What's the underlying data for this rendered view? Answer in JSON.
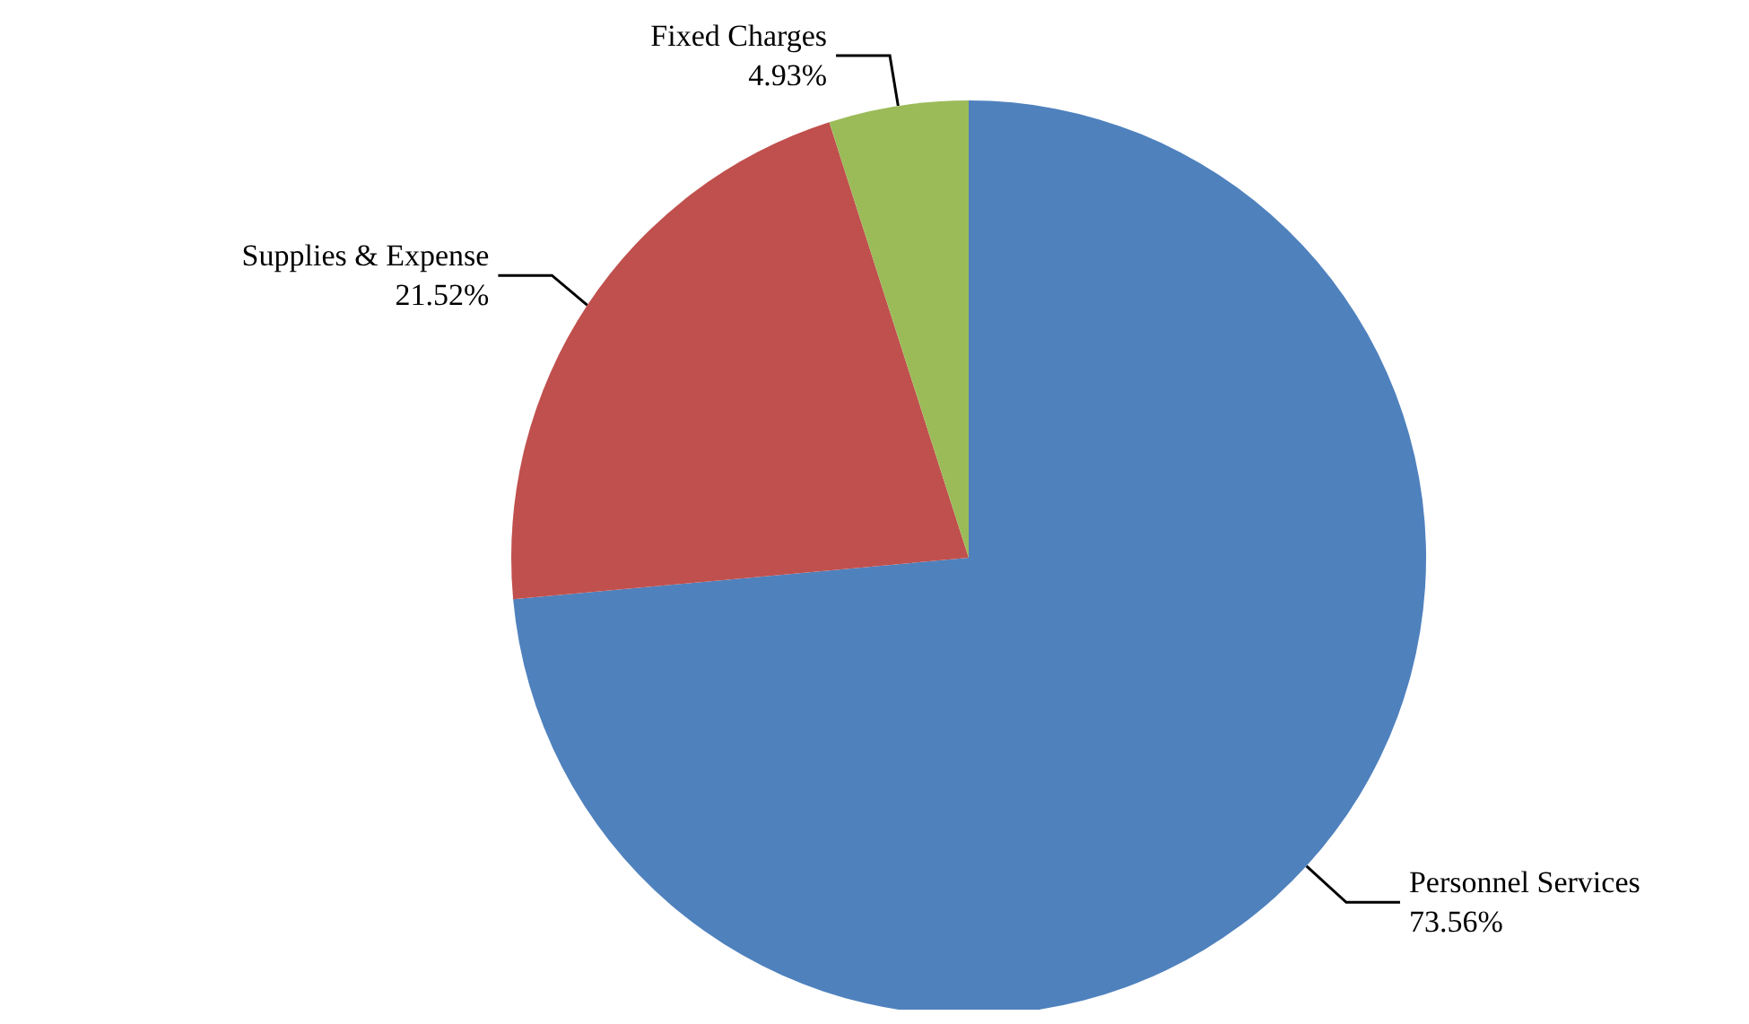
{
  "chart_data": {
    "type": "pie",
    "categories": [
      "Personnel Services",
      "Supplies & Expense",
      "Fixed Charges"
    ],
    "values": [
      73.56,
      21.52,
      4.93
    ],
    "value_labels": [
      "73.56%",
      "21.52%",
      "4.93%"
    ],
    "colors": [
      "#4f81bd",
      "#c0504d",
      "#9bbb59"
    ],
    "legend": false
  }
}
